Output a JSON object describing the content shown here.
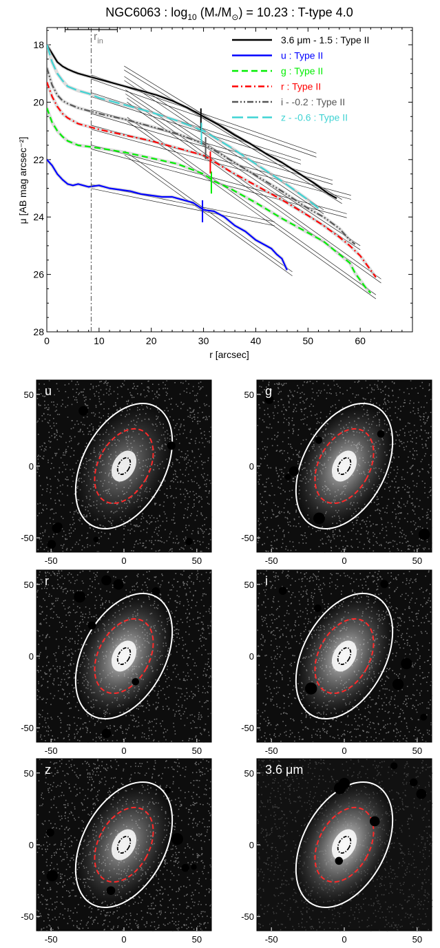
{
  "chart_data": [
    {
      "type": "line",
      "title": {
        "pre": "NGC6063 : log",
        "sub": "10",
        "mid": " (M",
        "star": "*",
        "slash": "/M",
        "sun": "⊙",
        "post": ") = 10.23 : T-type 4.0"
      },
      "xlabel": "r [arcsec]",
      "ylabel": "μ [AB mag arcsec⁻²]",
      "xlim": [
        0,
        70
      ],
      "ylim": [
        28,
        17.4
      ],
      "y_inverted": true,
      "xticks": [
        "0",
        "10",
        "20",
        "30",
        "40",
        "50",
        "60"
      ],
      "yticks": [
        "18",
        "20",
        "22",
        "24",
        "26",
        "28"
      ],
      "r_in_label": "r",
      "r_in_sub": "in",
      "r_in": 8.5,
      "r_in_errorbar": [
        3.5,
        13.5
      ],
      "legend_position": "top-right",
      "series": [
        {
          "name": "3.6 μm - 1.5 : Type II",
          "color": "#000000",
          "dash": "solid",
          "x": [
            0,
            1,
            2,
            3,
            4,
            5,
            6,
            7,
            8,
            9,
            10,
            12,
            15,
            18,
            21,
            24,
            27,
            30,
            33,
            36,
            39,
            42,
            45,
            48,
            51,
            54,
            55.5
          ],
          "y": [
            18.0,
            18.3,
            18.6,
            18.75,
            18.85,
            18.93,
            19.0,
            19.05,
            19.1,
            19.15,
            19.2,
            19.3,
            19.45,
            19.6,
            19.75,
            19.95,
            20.2,
            20.5,
            20.8,
            21.15,
            21.45,
            21.8,
            22.1,
            22.45,
            22.8,
            23.2,
            23.35
          ],
          "break_r": 29.5,
          "break_mu": 20.6
        },
        {
          "name": "u : Type II",
          "color": "#0000ff",
          "dash": "solid",
          "x": [
            0,
            1,
            2,
            3,
            4,
            5,
            6,
            8,
            10,
            12,
            14,
            16,
            18,
            20,
            22,
            24,
            26,
            28,
            30,
            32,
            34,
            36,
            38,
            40,
            42,
            43,
            44,
            45,
            46
          ],
          "y": [
            22.0,
            22.2,
            22.5,
            22.7,
            22.85,
            22.9,
            22.85,
            22.95,
            22.9,
            23.0,
            23.05,
            23.1,
            23.2,
            23.25,
            23.3,
            23.3,
            23.4,
            23.5,
            23.75,
            23.8,
            24.0,
            24.3,
            24.5,
            24.8,
            25.0,
            25.1,
            25.3,
            25.45,
            25.85
          ],
          "break_r": 29.8,
          "break_mu": 23.8
        },
        {
          "name": "g : Type II",
          "color": "#00ee00",
          "dash": "dashed",
          "x": [
            0,
            1,
            2,
            3,
            4,
            6,
            8,
            10,
            15,
            20,
            25,
            30,
            32,
            35,
            40,
            45,
            50,
            53,
            56,
            58,
            59,
            60,
            61,
            62
          ],
          "y": [
            20.2,
            20.7,
            21.0,
            21.2,
            21.35,
            21.5,
            21.55,
            21.6,
            21.75,
            21.95,
            22.15,
            22.5,
            22.75,
            23.0,
            23.5,
            24.05,
            24.55,
            24.85,
            25.3,
            25.6,
            25.95,
            26.2,
            26.45,
            26.65
          ],
          "break_r": 31.5,
          "break_mu": 22.8
        },
        {
          "name": "r : Type II",
          "color": "#ff0000",
          "dash": "dashdot",
          "x": [
            0,
            1,
            2,
            3,
            4,
            6,
            8,
            10,
            15,
            20,
            25,
            30,
            35,
            40,
            45,
            50,
            53,
            56,
            58,
            60,
            61,
            62,
            63
          ],
          "y": [
            19.3,
            19.8,
            20.15,
            20.4,
            20.55,
            20.75,
            20.85,
            20.95,
            21.15,
            21.35,
            21.6,
            21.85,
            22.4,
            22.9,
            23.4,
            23.95,
            24.3,
            24.7,
            25.0,
            25.35,
            25.6,
            25.85,
            26.1
          ],
          "break_r": 31.3,
          "break_mu": 22.1
        },
        {
          "name": "i - -0.2 : Type II",
          "color": "#555555",
          "dash": "dashdotdot",
          "x": [
            0,
            1,
            2,
            3,
            4,
            6,
            8,
            10,
            15,
            20,
            25,
            30,
            35,
            40,
            45,
            50,
            53,
            56,
            58,
            59
          ],
          "y": [
            18.8,
            19.4,
            19.75,
            19.95,
            20.05,
            20.2,
            20.3,
            20.4,
            20.6,
            20.85,
            21.1,
            21.45,
            22.0,
            22.55,
            23.1,
            23.7,
            24.0,
            24.4,
            24.8,
            24.95
          ],
          "break_r": 30.4,
          "break_mu": 21.6
        },
        {
          "name": "z - -0.6 : Type II",
          "color": "#3fd3d3",
          "dash": "longdash",
          "x": [
            0,
            1,
            2,
            3,
            4,
            6,
            8,
            10,
            15,
            20,
            25,
            30,
            35,
            40,
            45,
            50,
            52
          ],
          "y": [
            18.0,
            18.6,
            19.0,
            19.25,
            19.45,
            19.6,
            19.7,
            19.85,
            20.1,
            20.35,
            20.65,
            21.0,
            21.55,
            22.15,
            22.75,
            23.4,
            23.7
          ],
          "break_r": 29.6,
          "break_mu": 21.1
        }
      ]
    },
    {
      "type": "image-grid",
      "xticks": [
        "-50",
        "0",
        "50"
      ],
      "yticks": [
        "50",
        "0",
        "-50"
      ],
      "axis_range": [
        -60,
        60
      ],
      "panels": [
        {
          "label": "u",
          "bg": "#0d0d0d",
          "noise": "#cfcfcf",
          "glow": 0.55
        },
        {
          "label": "g",
          "bg": "#0d0d0d",
          "noise": "#cfcfcf",
          "glow": 0.8
        },
        {
          "label": "r",
          "bg": "#0d0d0d",
          "noise": "#cfcfcf",
          "glow": 0.85
        },
        {
          "label": "i",
          "bg": "#0d0d0d",
          "noise": "#cfcfcf",
          "glow": 0.85
        },
        {
          "label": "z",
          "bg": "#0d0d0d",
          "noise": "#cfcfcf",
          "glow": 0.7
        },
        {
          "label": "3.6 μm",
          "bg": "#111111",
          "noise": "#6b6b6b",
          "glow": 0.9
        }
      ],
      "ellipse_colors": {
        "outer": "#ffffff",
        "break": "#ff2a2a",
        "inner": "#000000"
      }
    }
  ]
}
